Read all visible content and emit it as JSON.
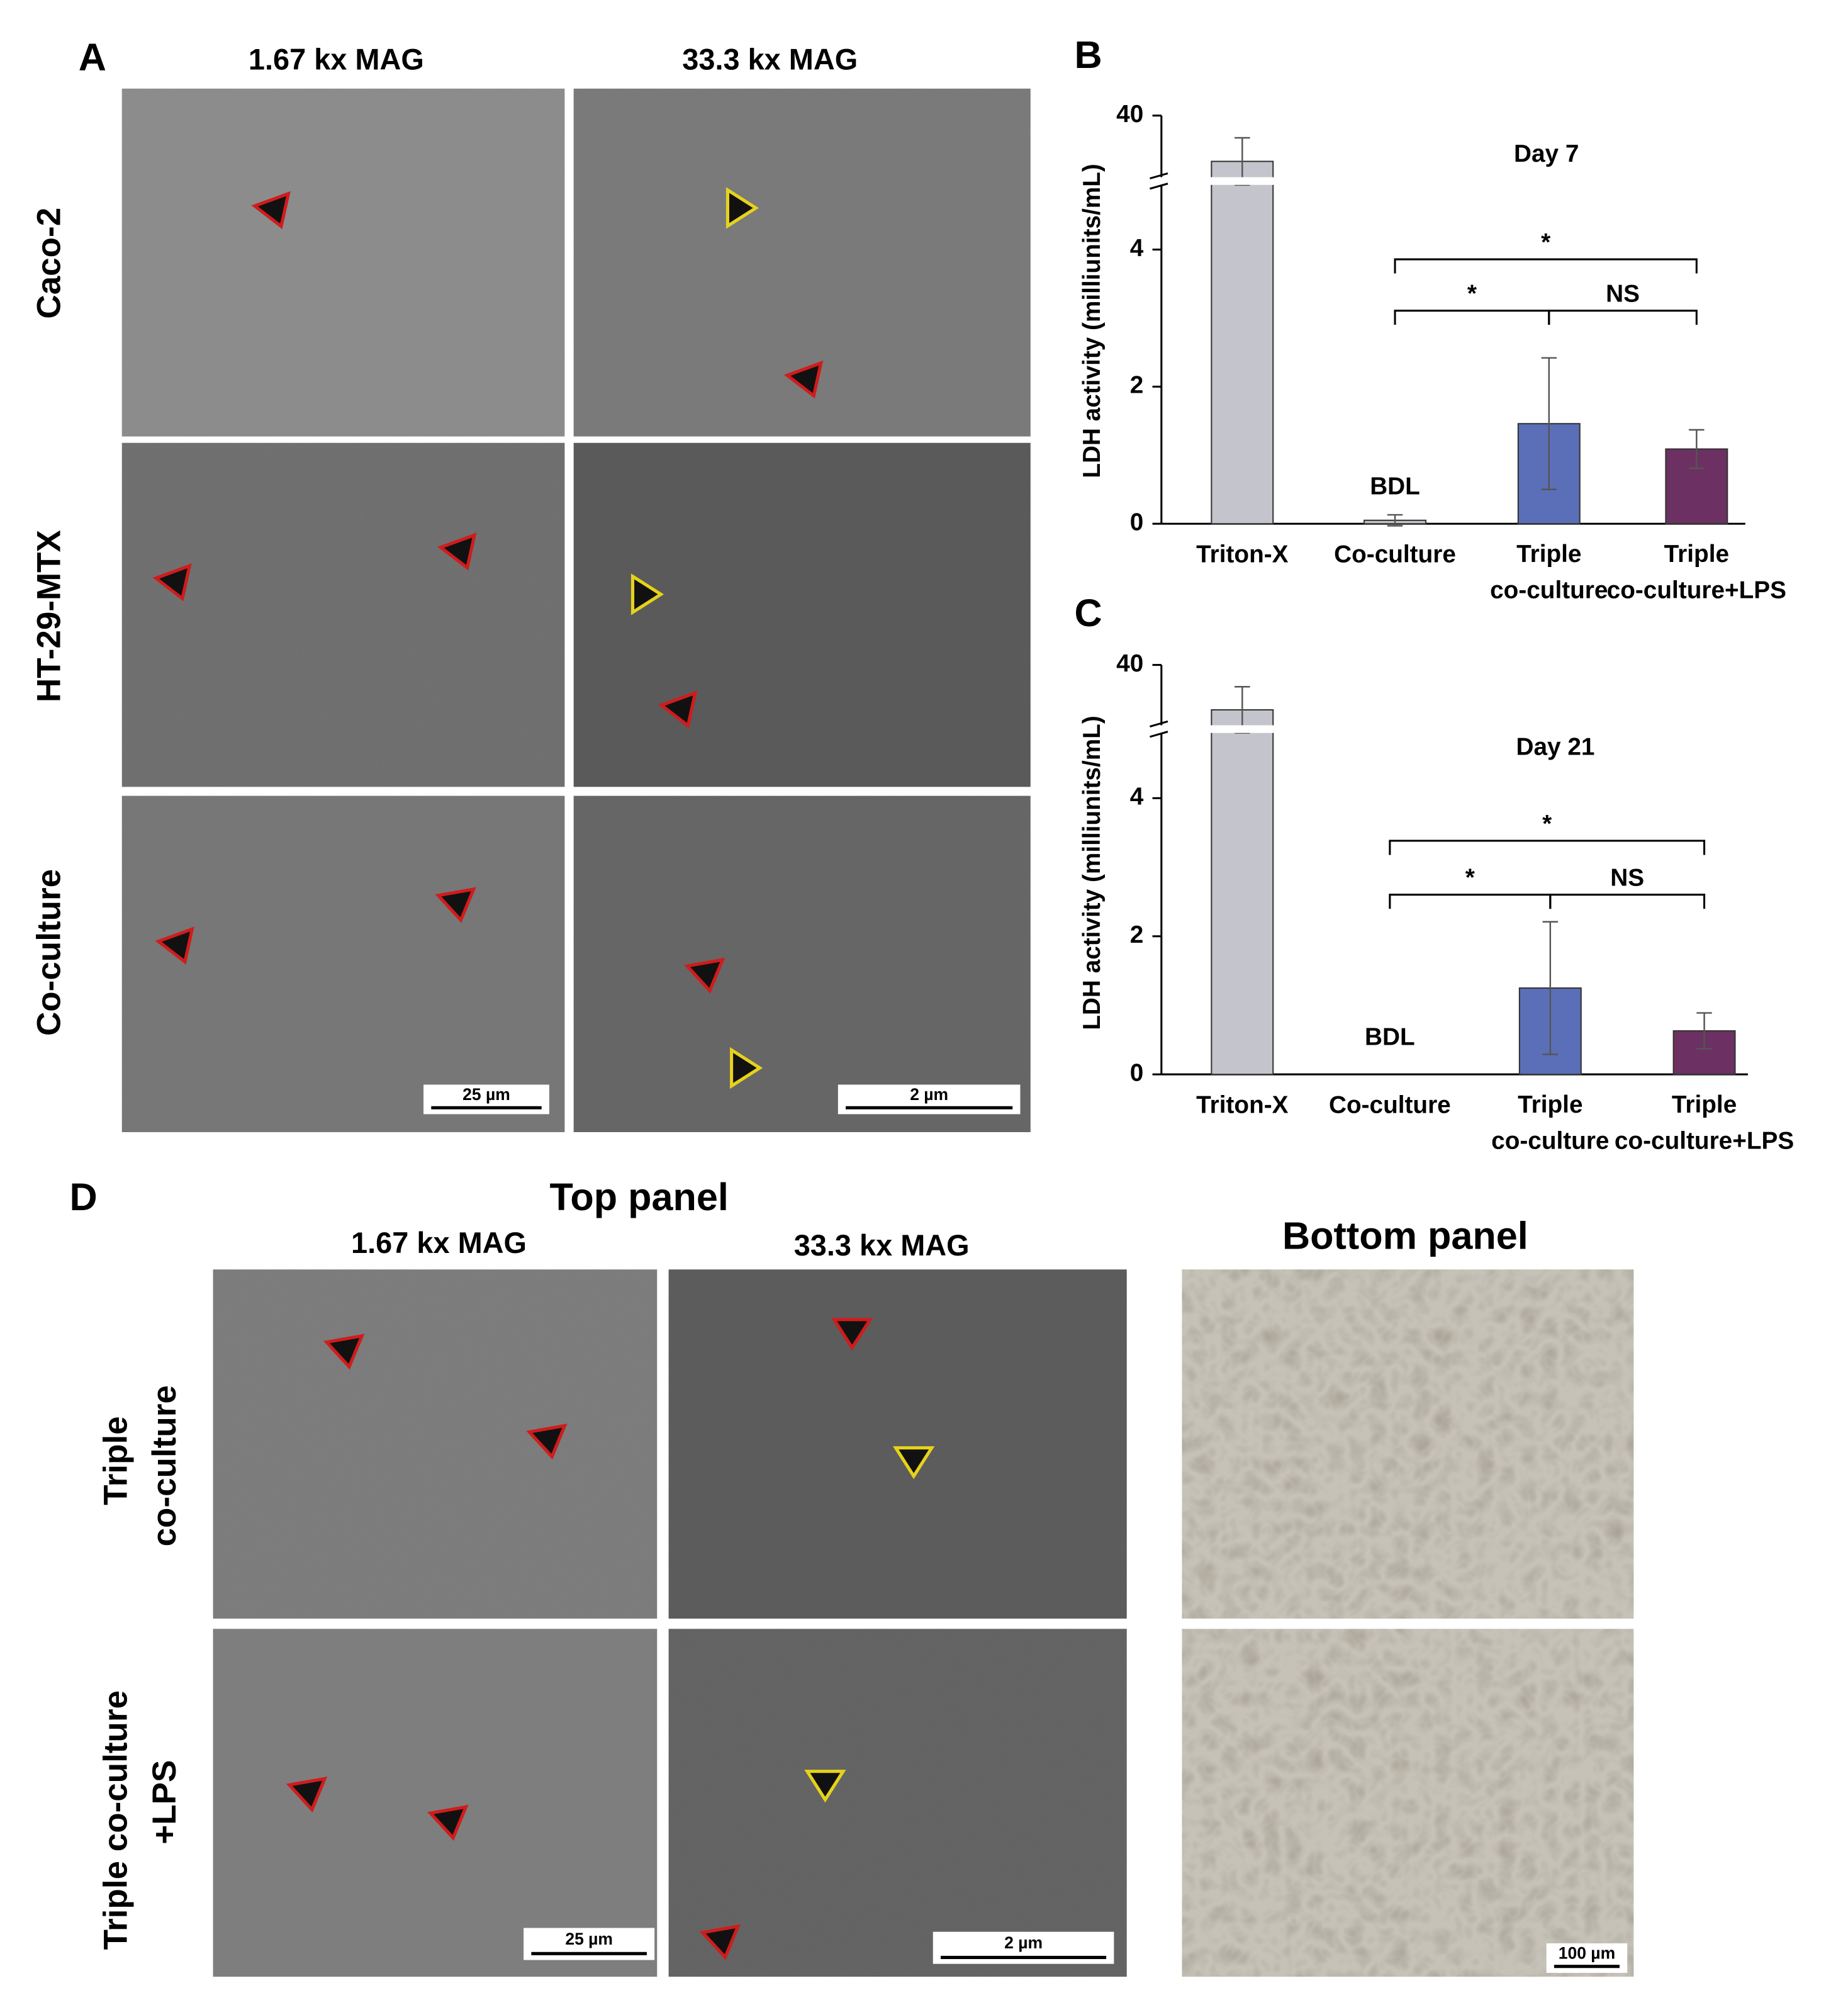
{
  "panel_a": {
    "label": "A",
    "columns": [
      "1.67 kx MAG",
      "33.3 kx MAG"
    ],
    "rows": [
      "Caco-2",
      "HT-29-MTX",
      "Co-culture"
    ],
    "scale_bars": [
      "25 µm",
      "2 µm"
    ]
  },
  "chart_data": [
    {
      "type": "bar",
      "panel_label": "B",
      "title": "Day 7",
      "ylabel": "LDH activity (milliunits/mL)",
      "categories": [
        "Triton-X",
        "Co-culture",
        "Triple co-culture",
        "Triple co-culture+LPS"
      ],
      "values": [
        36.5,
        0.05,
        1.46,
        1.09
      ],
      "errors": [
        1.8,
        0.08,
        0.96,
        0.28
      ],
      "colors": [
        "#c4c4cc",
        "#c4c4cc",
        "#5b6fb8",
        "#6c3062"
      ],
      "ylim": [
        0,
        40
      ],
      "y_break": [
        5,
        35
      ],
      "yticks": [
        0,
        2,
        4,
        40
      ],
      "annotations": [
        {
          "text": "BDL",
          "category": 1
        }
      ],
      "significance": [
        {
          "from": 1,
          "to": 3,
          "label": "*"
        },
        {
          "from": 1,
          "to": 2,
          "label": "*"
        },
        {
          "from": 2,
          "to": 3,
          "label": "NS"
        }
      ]
    },
    {
      "type": "bar",
      "panel_label": "C",
      "title": "Day 21",
      "ylabel": "LDH activity (milliunits/mL)",
      "categories": [
        "Triton-X",
        "Co-culture",
        "Triple co-culture",
        "Triple co-culture+LPS"
      ],
      "values": [
        36.5,
        null,
        1.25,
        0.63
      ],
      "errors": [
        1.8,
        null,
        0.96,
        0.26
      ],
      "colors": [
        "#c4c4cc",
        "#c4c4cc",
        "#5b6fb8",
        "#6c3062"
      ],
      "ylim": [
        0,
        40
      ],
      "y_break": [
        5,
        35
      ],
      "yticks": [
        0,
        2,
        4,
        40
      ],
      "annotations": [
        {
          "text": "BDL",
          "category": 1
        }
      ],
      "significance": [
        {
          "from": 1,
          "to": 3,
          "label": "*"
        },
        {
          "from": 1,
          "to": 2,
          "label": "*"
        },
        {
          "from": 2,
          "to": 3,
          "label": "NS"
        }
      ]
    }
  ],
  "panel_d": {
    "label": "D",
    "top_title": "Top panel",
    "bottom_title": "Bottom panel",
    "columns": [
      "1.67 kx MAG",
      "33.3 kx MAG"
    ],
    "rows": [
      [
        "Triple",
        "co-culture"
      ],
      [
        "Triple co-culture",
        "+LPS"
      ]
    ],
    "scale_bars": [
      "25 µm",
      "2 µm",
      "100 µm"
    ]
  }
}
